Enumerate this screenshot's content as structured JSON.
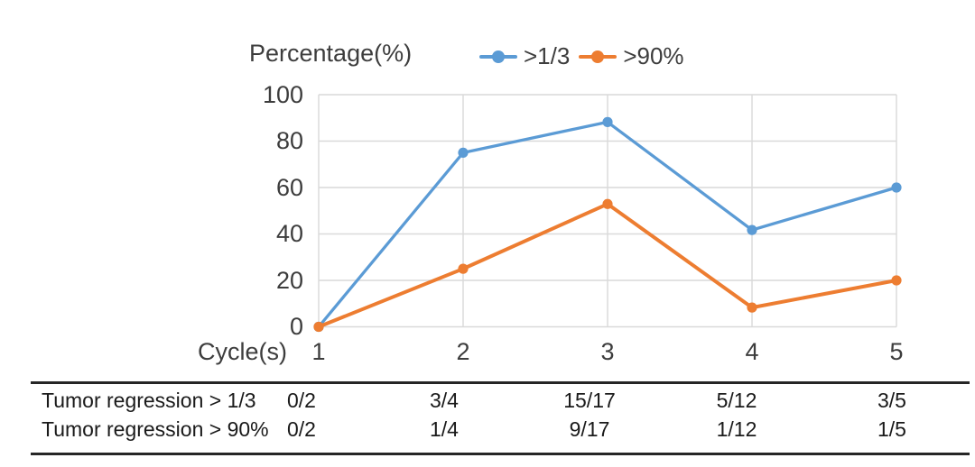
{
  "chart_data": {
    "type": "line",
    "title": "Percentage(%)",
    "xlabel": "Cycle(s)",
    "ylabel": "Percentage(%)",
    "categories": [
      "1",
      "2",
      "3",
      "4",
      "5"
    ],
    "yticks": [
      0,
      20,
      40,
      60,
      80,
      100
    ],
    "ylim": [
      0,
      100
    ],
    "grid": true,
    "legend_position": "top",
    "series": [
      {
        "name": ">1/3",
        "color": "#5B9BD5",
        "values": [
          0,
          75,
          88.2,
          41.7,
          60
        ],
        "fractions": [
          "0/2",
          "3/4",
          "15/17",
          "5/12",
          "3/5"
        ]
      },
      {
        "name": ">90%",
        "color": "#ED7D31",
        "values": [
          0,
          25,
          52.9,
          8.3,
          20
        ],
        "fractions": [
          "0/2",
          "1/4",
          "9/17",
          "1/12",
          "1/5"
        ]
      }
    ],
    "gridline_color": "#D9D9D9"
  },
  "table": {
    "rows": [
      {
        "label": "Tumor regression > 1/3",
        "cells": [
          "0/2",
          "3/4",
          "15/17",
          "5/12",
          "3/5"
        ]
      },
      {
        "label": "Tumor regression > 90%",
        "cells": [
          "0/2",
          "1/4",
          "9/17",
          "1/12",
          "1/5"
        ]
      }
    ]
  }
}
